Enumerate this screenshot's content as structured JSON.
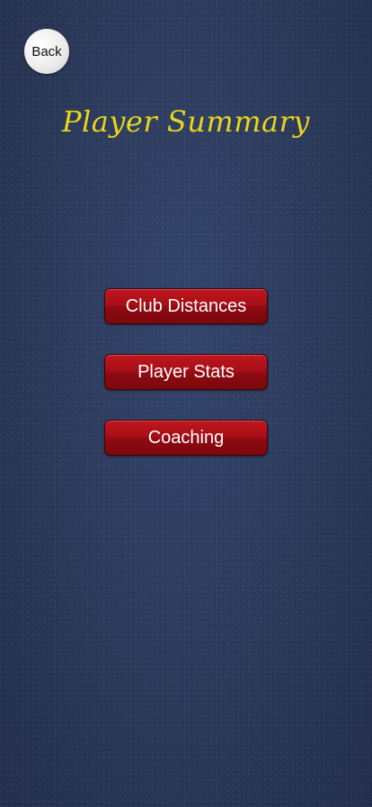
{
  "header": {
    "back_label": "Back",
    "title": "Player Summary"
  },
  "menu": {
    "items": [
      {
        "label": "Club Distances"
      },
      {
        "label": "Player Stats"
      },
      {
        "label": "Coaching"
      }
    ]
  },
  "colors": {
    "background": "#2b3a5f",
    "title": "#e8d51c",
    "button": "#a80f17",
    "button_text": "#ffffff"
  }
}
